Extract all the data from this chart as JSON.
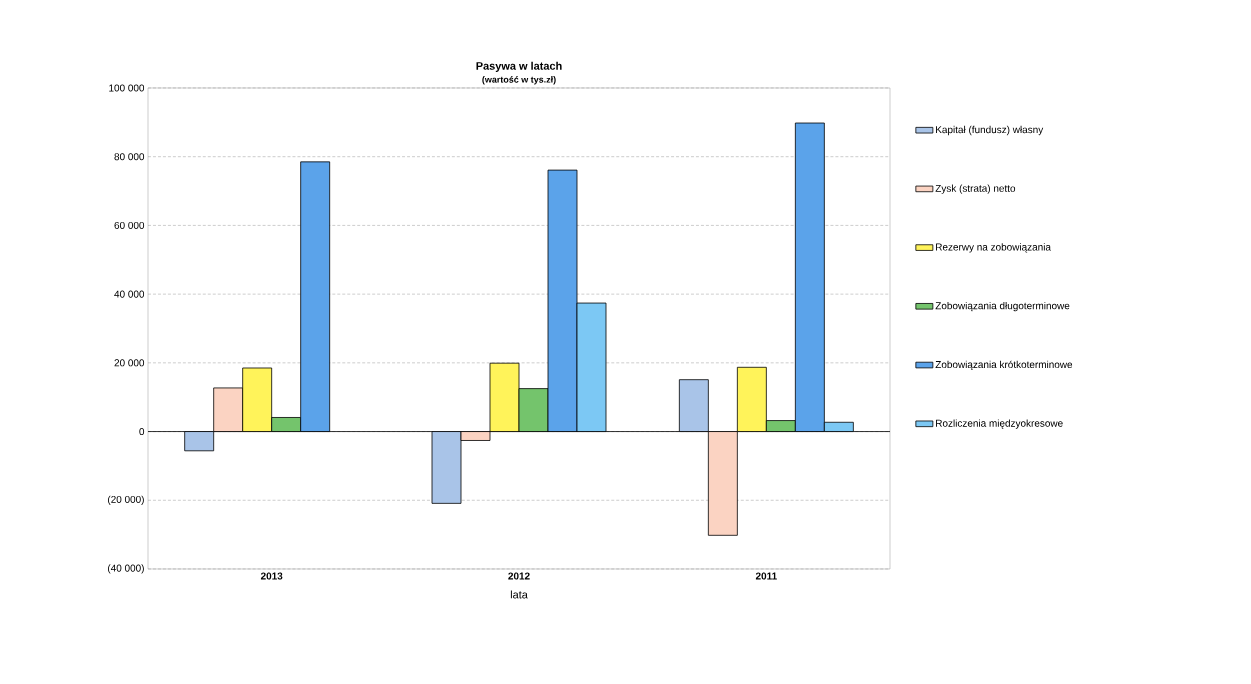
{
  "chart_data": {
    "type": "bar",
    "title": "Pasywa w latach",
    "subtitle": "(wartość w tys.zł)",
    "xlabel": "lata",
    "categories": [
      "2013",
      "2012",
      "2011"
    ],
    "series": [
      {
        "name": "Kapitał (fundusz) własny",
        "color": "#a9c4e8",
        "values": [
          -5600,
          -20900,
          15100
        ]
      },
      {
        "name": "Zysk (strata) netto",
        "color": "#fbd3c2",
        "values": [
          12700,
          -2600,
          -30200
        ]
      },
      {
        "name": "Rezerwy na zobowiązania",
        "color": "#fff35a",
        "values": [
          18500,
          19900,
          18700
        ]
      },
      {
        "name": "Zobowiązania długoterminowe",
        "color": "#74c46c",
        "values": [
          4100,
          12500,
          3200
        ]
      },
      {
        "name": "Zobowiązania krótkoterminowe",
        "color": "#5ba3ea",
        "values": [
          78500,
          76100,
          89800
        ]
      },
      {
        "name": "Rozliczenia międzyokresowe",
        "color": "#7cc8f4",
        "values": [
          null,
          37400,
          2700
        ]
      }
    ],
    "ylim": [
      -40000,
      100000
    ],
    "yticks": [
      {
        "value": -40000,
        "label": "(40 000)"
      },
      {
        "value": -20000,
        "label": "(20 000)"
      },
      {
        "value": 0,
        "label": "0"
      },
      {
        "value": 20000,
        "label": "20 000"
      },
      {
        "value": 40000,
        "label": "40 000"
      },
      {
        "value": 60000,
        "label": "60 000"
      },
      {
        "value": 80000,
        "label": "80 000"
      },
      {
        "value": 100000,
        "label": "100 000"
      }
    ],
    "grid": "y",
    "legend": "right"
  }
}
